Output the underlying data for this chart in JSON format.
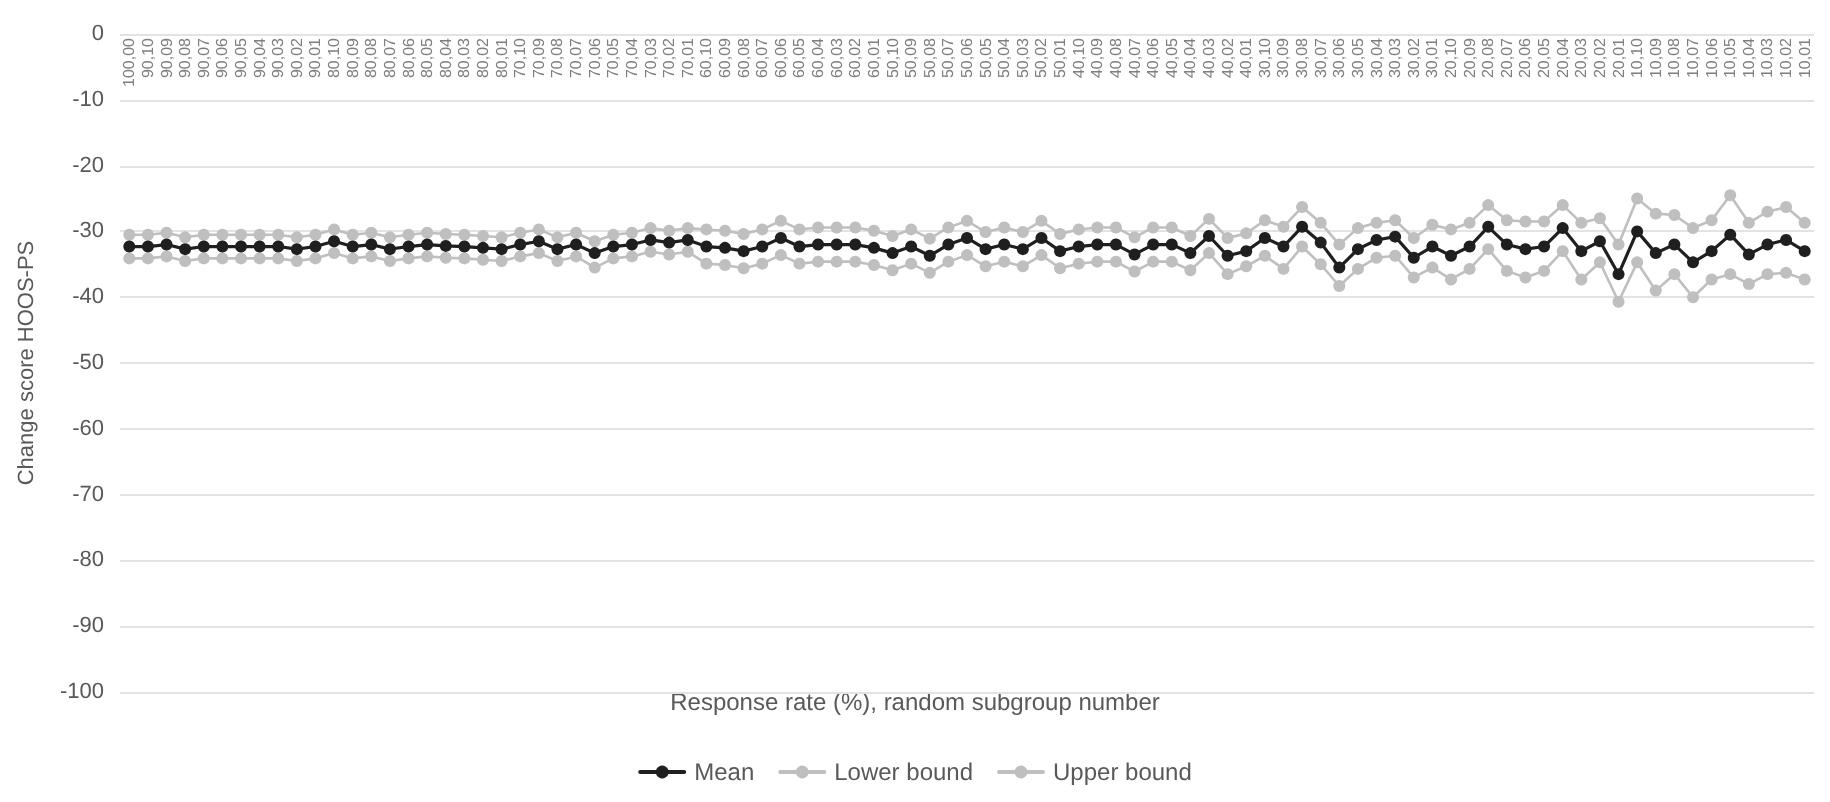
{
  "chart_data": {
    "type": "line",
    "xlabel": "Response rate (%), random subgroup number",
    "ylabel": "Change score HOOS-PS",
    "categories": [
      "100,00",
      "90,10",
      "90,09",
      "90,08",
      "90,07",
      "90,06",
      "90,05",
      "90,04",
      "90,03",
      "90,02",
      "90,01",
      "80,10",
      "80,09",
      "80,08",
      "80,07",
      "80,06",
      "80,05",
      "80,04",
      "80,03",
      "80,02",
      "80,01",
      "70,10",
      "70,09",
      "70,08",
      "70,07",
      "70,06",
      "70,05",
      "70,04",
      "70,03",
      "70,02",
      "70,01",
      "60,10",
      "60,09",
      "60,08",
      "60,07",
      "60,06",
      "60,05",
      "60,04",
      "60,03",
      "60,02",
      "60,01",
      "50,10",
      "50,09",
      "50,08",
      "50,07",
      "50,06",
      "50,05",
      "50,04",
      "50,03",
      "50,02",
      "50,01",
      "40,10",
      "40,09",
      "40,08",
      "40,07",
      "40,06",
      "40,05",
      "40,04",
      "40,03",
      "40,02",
      "40,01",
      "30,10",
      "30,09",
      "30,08",
      "30,07",
      "30,06",
      "30,05",
      "30,04",
      "30,03",
      "30,02",
      "30,01",
      "20,10",
      "20,09",
      "20,08",
      "20,07",
      "20,06",
      "20,05",
      "20,04",
      "20,03",
      "20,02",
      "20,01",
      "10,10",
      "10,09",
      "10,08",
      "10,07",
      "10,06",
      "10,05",
      "10,04",
      "10,03",
      "10,02",
      "10,01"
    ],
    "series": [
      {
        "name": "Mean",
        "color": "#1f1f1f",
        "values": [
          -32.3,
          -32.3,
          -32,
          -32.7,
          -32.3,
          -32.3,
          -32.3,
          -32.3,
          -32.3,
          -32.7,
          -32.3,
          -31.5,
          -32.3,
          -32,
          -32.7,
          -32.3,
          -32,
          -32.2,
          -32.3,
          -32.5,
          -32.7,
          -32,
          -31.5,
          -32.7,
          -32,
          -33.3,
          -32.3,
          -32,
          -31.3,
          -31.7,
          -31.3,
          -32.3,
          -32.5,
          -33,
          -32.3,
          -31,
          -32.3,
          -32,
          -32,
          -32,
          -32.5,
          -33.3,
          -32.3,
          -33.7,
          -32,
          -31,
          -32.7,
          -32,
          -32.7,
          -31,
          -33,
          -32.3,
          -32,
          -32,
          -33.5,
          -32,
          -32,
          -33.3,
          -30.7,
          -33.7,
          -33,
          -31,
          -32.3,
          -29.3,
          -31.7,
          -35.5,
          -32.7,
          -31.3,
          -30.8,
          -34,
          -32.3,
          -33.7,
          -32.3,
          -29.3,
          -32,
          -32.7,
          -32.3,
          -29.5,
          -33,
          -31.5,
          -36.5,
          -30,
          -33.3,
          -32,
          -34.7,
          -33,
          -30.5,
          -33.5,
          -32,
          -31.3,
          -33
        ]
      },
      {
        "name": "Lower bound",
        "color": "#bfbfbf",
        "values": [
          -34.1,
          -34.1,
          -33.8,
          -34.5,
          -34.1,
          -34.1,
          -34.1,
          -34.1,
          -34.1,
          -34.5,
          -34.1,
          -33.3,
          -34.1,
          -33.8,
          -34.5,
          -34.1,
          -33.8,
          -34,
          -34.1,
          -34.3,
          -34.5,
          -33.8,
          -33.3,
          -34.5,
          -33.8,
          -35.5,
          -34.1,
          -33.8,
          -33.1,
          -33.5,
          -33.1,
          -34.9,
          -35.1,
          -35.6,
          -34.9,
          -33.6,
          -34.9,
          -34.6,
          -34.6,
          -34.6,
          -35.1,
          -35.9,
          -34.9,
          -36.3,
          -34.6,
          -33.6,
          -35.3,
          -34.6,
          -35.3,
          -33.6,
          -35.6,
          -34.9,
          -34.6,
          -34.6,
          -36.1,
          -34.6,
          -34.6,
          -35.9,
          -33.3,
          -36.5,
          -35.3,
          -33.7,
          -35.7,
          -32.3,
          -35,
          -38.3,
          -35.7,
          -34,
          -33.7,
          -37,
          -35.5,
          -37.3,
          -35.7,
          -32.7,
          -36,
          -37,
          -36,
          -33,
          -37.3,
          -34.7,
          -40.7,
          -34.7,
          -39,
          -36.5,
          -40,
          -37.3,
          -36.5,
          -38,
          -36.5,
          -36.3,
          -37.3
        ]
      },
      {
        "name": "Upper bound",
        "color": "#bfbfbf",
        "values": [
          -30.5,
          -30.5,
          -30.2,
          -30.9,
          -30.5,
          -30.5,
          -30.5,
          -30.5,
          -30.5,
          -30.9,
          -30.5,
          -29.7,
          -30.5,
          -30.2,
          -30.9,
          -30.5,
          -30.2,
          -30.4,
          -30.5,
          -30.7,
          -30.9,
          -30.2,
          -29.7,
          -30.9,
          -30.2,
          -31.5,
          -30.5,
          -30.2,
          -29.5,
          -29.9,
          -29.5,
          -29.7,
          -29.9,
          -30.4,
          -29.7,
          -28.4,
          -29.7,
          -29.4,
          -29.4,
          -29.4,
          -29.9,
          -30.7,
          -29.7,
          -31.1,
          -29.4,
          -28.4,
          -30.1,
          -29.4,
          -30.1,
          -28.4,
          -30.4,
          -29.7,
          -29.4,
          -29.4,
          -30.9,
          -29.4,
          -29.4,
          -30.7,
          -28.1,
          -31,
          -30.3,
          -28.3,
          -29.3,
          -26.3,
          -28.7,
          -32,
          -29.5,
          -28.7,
          -28.3,
          -31,
          -29,
          -29.7,
          -28.7,
          -26,
          -28.3,
          -28.5,
          -28.5,
          -26,
          -28.7,
          -28,
          -32,
          -25,
          -27.3,
          -27.5,
          -29.5,
          -28.3,
          -24.5,
          -28.7,
          -27,
          -26.3,
          -28.7
        ]
      }
    ],
    "ylim": [
      -100,
      0
    ],
    "yticks": [
      0,
      -10,
      -20,
      -30,
      -40,
      -50,
      -60,
      -70,
      -80,
      -90,
      -100
    ],
    "grid": "y",
    "legend": "bottom",
    "marker": "circle",
    "line_style": "solid"
  }
}
